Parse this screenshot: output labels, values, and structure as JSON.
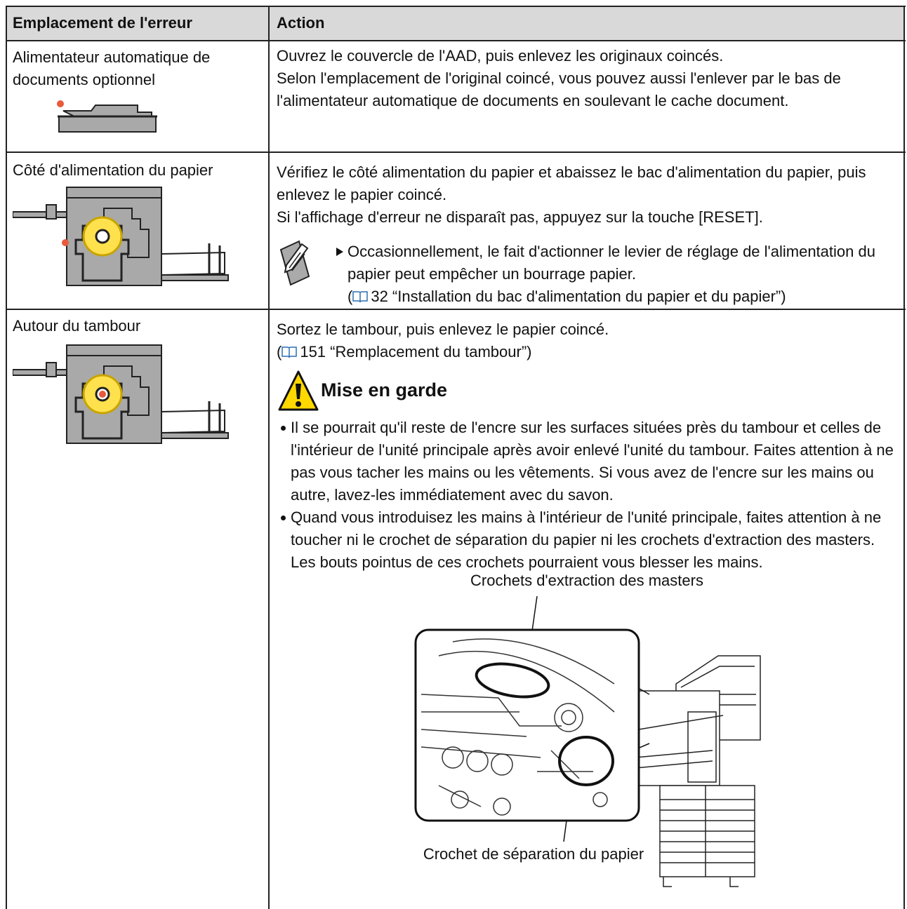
{
  "table": {
    "headers": [
      "Emplacement de l'erreur",
      "Action"
    ],
    "rows": [
      {
        "location": "Alimentateur automatique de documents optionnel",
        "action": [
          "Ouvrez le couvercle de l'AAD, puis enlevez les originaux coincés.",
          "Selon l'emplacement de l'original coincé, vous pouvez aussi l'enlever par le bas de l'alimentateur automatique de documents en soulevant le cache document."
        ]
      },
      {
        "location": "Côté d'alimentation du papier",
        "action": [
          "Vérifiez le côté alimentation du papier et abaissez le bac d'alimentation du papier, puis enlevez le papier coincé.",
          "Si l'affichage d'erreur ne disparaît pas, appuyez sur la touche [RESET]."
        ],
        "note": {
          "text": "Occasionnellement, le fait d'actionner le levier de réglage de l'alimentation du papier peut empêcher un bourrage papier.",
          "reference": [
            "(",
            "32 “Installation du bac d'alimentation du papier et du papier”)"
          ]
        }
      },
      {
        "location": "Autour du tambour",
        "action": [
          "Sortez le tambour, puis enlevez le papier coincé."
        ],
        "reference": [
          "(",
          "151 “Remplacement du tambour”)"
        ],
        "caution": {
          "title": "Mise en garde",
          "items": [
            "Il se pourrait qu'il reste de l'encre sur les surfaces situées près du tambour et celles de l'intérieur de l'unité principale après avoir enlevé l'unité du tambour. Faites attention à ne pas vous tacher les mains ou les vêtements. Si vous avez de l'encre sur les mains ou autre, lavez-les immédiatement avec du savon.",
            "Quand vous introduisez les mains à l'intérieur de l'unité principale, faites attention à ne toucher ni le crochet de séparation du papier ni les crochets d'extraction des masters. Les bouts pointus de ces crochets pourraient vous blesser les mains."
          ]
        },
        "figure": {
          "labels": [
            "Crochets d'extraction des masters",
            "Crochet de séparation du papier"
          ]
        }
      }
    ]
  }
}
